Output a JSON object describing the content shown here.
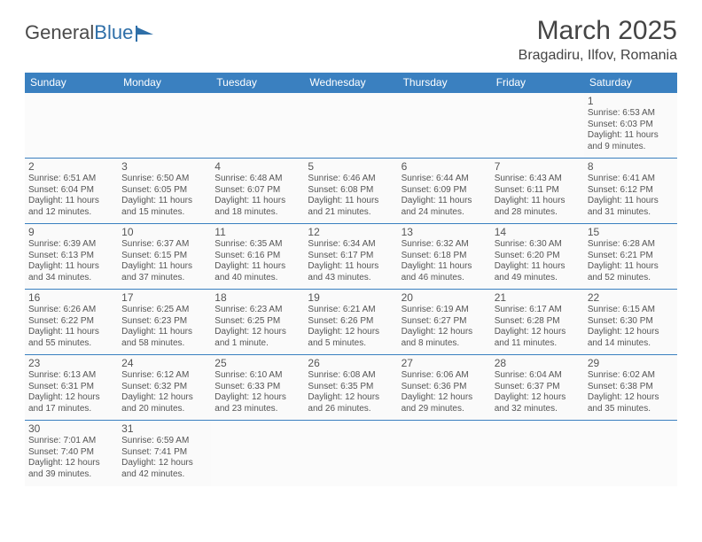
{
  "logo": {
    "text1": "General",
    "text2": "Blue"
  },
  "title": "March 2025",
  "location": "Bragadiru, Ilfov, Romania",
  "colors": {
    "header_bg": "#3a80c0",
    "header_text": "#ffffff",
    "cell_border_top": "#3a80c0",
    "cell_bg": "#fafafa",
    "text": "#555555",
    "logo_gray": "#4a4a4a",
    "logo_blue": "#2f6fa8"
  },
  "typography": {
    "title_fontsize": 30,
    "location_fontsize": 16,
    "header_fontsize": 12,
    "daynum_fontsize": 12,
    "body_fontsize": 10
  },
  "weekdays": [
    "Sunday",
    "Monday",
    "Tuesday",
    "Wednesday",
    "Thursday",
    "Friday",
    "Saturday"
  ],
  "weeks": [
    [
      null,
      null,
      null,
      null,
      null,
      null,
      {
        "n": "1",
        "sr": "Sunrise: 6:53 AM",
        "ss": "Sunset: 6:03 PM",
        "dl1": "Daylight: 11 hours",
        "dl2": "and 9 minutes."
      }
    ],
    [
      {
        "n": "2",
        "sr": "Sunrise: 6:51 AM",
        "ss": "Sunset: 6:04 PM",
        "dl1": "Daylight: 11 hours",
        "dl2": "and 12 minutes."
      },
      {
        "n": "3",
        "sr": "Sunrise: 6:50 AM",
        "ss": "Sunset: 6:05 PM",
        "dl1": "Daylight: 11 hours",
        "dl2": "and 15 minutes."
      },
      {
        "n": "4",
        "sr": "Sunrise: 6:48 AM",
        "ss": "Sunset: 6:07 PM",
        "dl1": "Daylight: 11 hours",
        "dl2": "and 18 minutes."
      },
      {
        "n": "5",
        "sr": "Sunrise: 6:46 AM",
        "ss": "Sunset: 6:08 PM",
        "dl1": "Daylight: 11 hours",
        "dl2": "and 21 minutes."
      },
      {
        "n": "6",
        "sr": "Sunrise: 6:44 AM",
        "ss": "Sunset: 6:09 PM",
        "dl1": "Daylight: 11 hours",
        "dl2": "and 24 minutes."
      },
      {
        "n": "7",
        "sr": "Sunrise: 6:43 AM",
        "ss": "Sunset: 6:11 PM",
        "dl1": "Daylight: 11 hours",
        "dl2": "and 28 minutes."
      },
      {
        "n": "8",
        "sr": "Sunrise: 6:41 AM",
        "ss": "Sunset: 6:12 PM",
        "dl1": "Daylight: 11 hours",
        "dl2": "and 31 minutes."
      }
    ],
    [
      {
        "n": "9",
        "sr": "Sunrise: 6:39 AM",
        "ss": "Sunset: 6:13 PM",
        "dl1": "Daylight: 11 hours",
        "dl2": "and 34 minutes."
      },
      {
        "n": "10",
        "sr": "Sunrise: 6:37 AM",
        "ss": "Sunset: 6:15 PM",
        "dl1": "Daylight: 11 hours",
        "dl2": "and 37 minutes."
      },
      {
        "n": "11",
        "sr": "Sunrise: 6:35 AM",
        "ss": "Sunset: 6:16 PM",
        "dl1": "Daylight: 11 hours",
        "dl2": "and 40 minutes."
      },
      {
        "n": "12",
        "sr": "Sunrise: 6:34 AM",
        "ss": "Sunset: 6:17 PM",
        "dl1": "Daylight: 11 hours",
        "dl2": "and 43 minutes."
      },
      {
        "n": "13",
        "sr": "Sunrise: 6:32 AM",
        "ss": "Sunset: 6:18 PM",
        "dl1": "Daylight: 11 hours",
        "dl2": "and 46 minutes."
      },
      {
        "n": "14",
        "sr": "Sunrise: 6:30 AM",
        "ss": "Sunset: 6:20 PM",
        "dl1": "Daylight: 11 hours",
        "dl2": "and 49 minutes."
      },
      {
        "n": "15",
        "sr": "Sunrise: 6:28 AM",
        "ss": "Sunset: 6:21 PM",
        "dl1": "Daylight: 11 hours",
        "dl2": "and 52 minutes."
      }
    ],
    [
      {
        "n": "16",
        "sr": "Sunrise: 6:26 AM",
        "ss": "Sunset: 6:22 PM",
        "dl1": "Daylight: 11 hours",
        "dl2": "and 55 minutes."
      },
      {
        "n": "17",
        "sr": "Sunrise: 6:25 AM",
        "ss": "Sunset: 6:23 PM",
        "dl1": "Daylight: 11 hours",
        "dl2": "and 58 minutes."
      },
      {
        "n": "18",
        "sr": "Sunrise: 6:23 AM",
        "ss": "Sunset: 6:25 PM",
        "dl1": "Daylight: 12 hours",
        "dl2": "and 1 minute."
      },
      {
        "n": "19",
        "sr": "Sunrise: 6:21 AM",
        "ss": "Sunset: 6:26 PM",
        "dl1": "Daylight: 12 hours",
        "dl2": "and 5 minutes."
      },
      {
        "n": "20",
        "sr": "Sunrise: 6:19 AM",
        "ss": "Sunset: 6:27 PM",
        "dl1": "Daylight: 12 hours",
        "dl2": "and 8 minutes."
      },
      {
        "n": "21",
        "sr": "Sunrise: 6:17 AM",
        "ss": "Sunset: 6:28 PM",
        "dl1": "Daylight: 12 hours",
        "dl2": "and 11 minutes."
      },
      {
        "n": "22",
        "sr": "Sunrise: 6:15 AM",
        "ss": "Sunset: 6:30 PM",
        "dl1": "Daylight: 12 hours",
        "dl2": "and 14 minutes."
      }
    ],
    [
      {
        "n": "23",
        "sr": "Sunrise: 6:13 AM",
        "ss": "Sunset: 6:31 PM",
        "dl1": "Daylight: 12 hours",
        "dl2": "and 17 minutes."
      },
      {
        "n": "24",
        "sr": "Sunrise: 6:12 AM",
        "ss": "Sunset: 6:32 PM",
        "dl1": "Daylight: 12 hours",
        "dl2": "and 20 minutes."
      },
      {
        "n": "25",
        "sr": "Sunrise: 6:10 AM",
        "ss": "Sunset: 6:33 PM",
        "dl1": "Daylight: 12 hours",
        "dl2": "and 23 minutes."
      },
      {
        "n": "26",
        "sr": "Sunrise: 6:08 AM",
        "ss": "Sunset: 6:35 PM",
        "dl1": "Daylight: 12 hours",
        "dl2": "and 26 minutes."
      },
      {
        "n": "27",
        "sr": "Sunrise: 6:06 AM",
        "ss": "Sunset: 6:36 PM",
        "dl1": "Daylight: 12 hours",
        "dl2": "and 29 minutes."
      },
      {
        "n": "28",
        "sr": "Sunrise: 6:04 AM",
        "ss": "Sunset: 6:37 PM",
        "dl1": "Daylight: 12 hours",
        "dl2": "and 32 minutes."
      },
      {
        "n": "29",
        "sr": "Sunrise: 6:02 AM",
        "ss": "Sunset: 6:38 PM",
        "dl1": "Daylight: 12 hours",
        "dl2": "and 35 minutes."
      }
    ],
    [
      {
        "n": "30",
        "sr": "Sunrise: 7:01 AM",
        "ss": "Sunset: 7:40 PM",
        "dl1": "Daylight: 12 hours",
        "dl2": "and 39 minutes."
      },
      {
        "n": "31",
        "sr": "Sunrise: 6:59 AM",
        "ss": "Sunset: 7:41 PM",
        "dl1": "Daylight: 12 hours",
        "dl2": "and 42 minutes."
      },
      null,
      null,
      null,
      null,
      null
    ]
  ]
}
